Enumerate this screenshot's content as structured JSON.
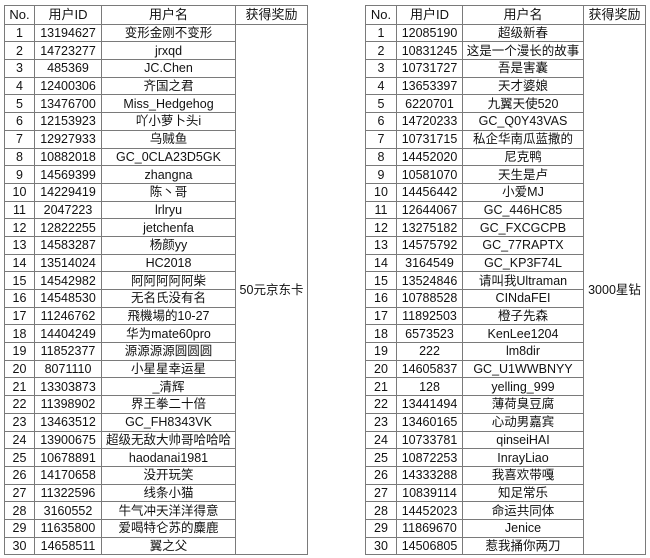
{
  "headers": {
    "no": "No.",
    "user_id": "用户ID",
    "username": "用户名",
    "reward": "获得奖励"
  },
  "tables": [
    {
      "reward": "50元京东卡",
      "rows": [
        [
          "1",
          "13194627",
          "变形金刚不变形"
        ],
        [
          "2",
          "14723277",
          "jrxqd"
        ],
        [
          "3",
          "485369",
          "JC.Chen"
        ],
        [
          "4",
          "12400306",
          "齐国之君"
        ],
        [
          "5",
          "13476700",
          "Miss_Hedgehog"
        ],
        [
          "6",
          "12153923",
          "吖小萝卜头i"
        ],
        [
          "7",
          "12927933",
          "乌贼鱼"
        ],
        [
          "8",
          "10882018",
          "GC_0CLA23D5GK"
        ],
        [
          "9",
          "14569399",
          "zhangna"
        ],
        [
          "10",
          "14229419",
          "陈丶哥"
        ],
        [
          "11",
          "2047223",
          "lrlryu"
        ],
        [
          "12",
          "12822255",
          "jetchenfa"
        ],
        [
          "13",
          "14583287",
          "杨颜yy"
        ],
        [
          "14",
          "13514024",
          "HC2018"
        ],
        [
          "15",
          "14542982",
          "阿阿阿阿阿柴"
        ],
        [
          "16",
          "14548530",
          "无名氏没有名"
        ],
        [
          "17",
          "11246762",
          "飛機場的10-27"
        ],
        [
          "18",
          "14404249",
          "华为mate60pro"
        ],
        [
          "19",
          "11852377",
          "源源源源圆圆圆"
        ],
        [
          "20",
          "8071110",
          "小星星幸运星"
        ],
        [
          "21",
          "13303873",
          "_清辉"
        ],
        [
          "22",
          "11398902",
          "界王拳二十倍"
        ],
        [
          "23",
          "13463512",
          "GC_FH8343VK"
        ],
        [
          "24",
          "13900675",
          "超级无敌大帅哥哈哈哈"
        ],
        [
          "25",
          "10678891",
          "haodanai1981"
        ],
        [
          "26",
          "14170658",
          "没开玩笑"
        ],
        [
          "27",
          "11322596",
          "线条小猫"
        ],
        [
          "28",
          "3160552",
          "牛气冲天洋洋得意"
        ],
        [
          "29",
          "11635800",
          "爱喝特仑苏的麋鹿"
        ],
        [
          "30",
          "14658511",
          "翼之父"
        ]
      ]
    },
    {
      "reward": "3000星钻",
      "rows": [
        [
          "1",
          "12085190",
          "超级新春"
        ],
        [
          "2",
          "10831245",
          "这是一个漫长的故事"
        ],
        [
          "3",
          "10731727",
          "吾是害囊"
        ],
        [
          "4",
          "13653397",
          "天才婆娘"
        ],
        [
          "5",
          "6220701",
          "九翼天使520"
        ],
        [
          "6",
          "14720233",
          "GC_Q0Y43VAS"
        ],
        [
          "7",
          "10731715",
          "私企华南瓜蓝撒的"
        ],
        [
          "8",
          "14452020",
          "尼克鸭"
        ],
        [
          "9",
          "10581070",
          "天生是卢"
        ],
        [
          "10",
          "14456442",
          "小爱MJ"
        ],
        [
          "11",
          "12644067",
          "GC_446HC85"
        ],
        [
          "12",
          "13275182",
          "GC_FXCGCPB"
        ],
        [
          "13",
          "14575792",
          "GC_77RAPTX"
        ],
        [
          "14",
          "3164549",
          "GC_KP3F74L"
        ],
        [
          "15",
          "13524846",
          "请叫我Ultraman"
        ],
        [
          "16",
          "10788528",
          "CINdaFEI"
        ],
        [
          "17",
          "11892503",
          "橙子先森"
        ],
        [
          "18",
          "6573523",
          "KenLee1204"
        ],
        [
          "19",
          "222",
          "lm8dir"
        ],
        [
          "20",
          "14605837",
          "GC_U1WWBNYY"
        ],
        [
          "21",
          "128",
          "yelling_999"
        ],
        [
          "22",
          "13441494",
          "薄荷臭豆腐"
        ],
        [
          "23",
          "13460165",
          "心动男嘉宾"
        ],
        [
          "24",
          "10733781",
          "qinseiHAI"
        ],
        [
          "25",
          "10872253",
          "InrayLiao"
        ],
        [
          "26",
          "14333288",
          "我喜欢带嘎"
        ],
        [
          "27",
          "10839114",
          "知足常乐"
        ],
        [
          "28",
          "14452023",
          "命运共同体"
        ],
        [
          "29",
          "11869670",
          "Jenice"
        ],
        [
          "30",
          "14506805",
          "惹我捅你两刀"
        ]
      ]
    }
  ]
}
